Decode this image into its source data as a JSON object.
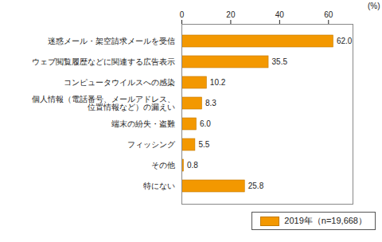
{
  "chart_data": {
    "type": "bar",
    "orientation": "horizontal",
    "categories": [
      "迷惑メール・架空請求メールを受信",
      "ウェブ閲覧履歴などに関連する広告表示",
      "コンピュータウイルスへの感染",
      "個人情報（電話番号、メールアドレス、\n位置情報など）の漏えい",
      "端末の紛失・盗難",
      "フィッシング",
      "その他",
      "特にない"
    ],
    "series": [
      {
        "name": "2019年（n=19,668）",
        "color": "#f39800",
        "values": [
          62.0,
          35.5,
          10.2,
          8.3,
          6.0,
          5.5,
          0.8,
          25.8
        ],
        "value_labels": [
          "62.0",
          "35.5",
          "10.2",
          "8.3",
          "6.0",
          "5.5",
          "0.8",
          "25.8"
        ]
      }
    ],
    "xlabel": "(%)",
    "xlim": [
      0,
      70
    ],
    "xticks": [
      0,
      20,
      40,
      60
    ],
    "grid": false,
    "data_labels": true,
    "legend": "bottom-right"
  }
}
